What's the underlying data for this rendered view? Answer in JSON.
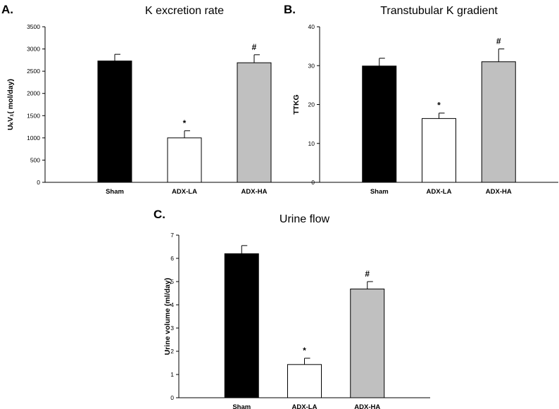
{
  "chart_data": [
    {
      "panel": "A.",
      "type": "bar",
      "title": "K excretion rate",
      "ylabel": "UₖV₁( mol/day)",
      "xlabel": "",
      "categories": [
        "Sham",
        "ADX-LA",
        "ADX-HA"
      ],
      "values": [
        2730,
        1000,
        2690
      ],
      "errors": [
        150,
        160,
        180
      ],
      "significance": [
        "",
        "*",
        "#"
      ],
      "bar_colors": [
        "#000000",
        "#ffffff",
        "#c0c0c0"
      ],
      "ylim": [
        0,
        3500
      ],
      "yticks": [
        "0",
        "500",
        "1000",
        "1500",
        "2000",
        "2500",
        "3000",
        "3500"
      ],
      "grid": false
    },
    {
      "panel": "B.",
      "type": "bar",
      "title": "Transtubular K gradient",
      "ylabel": "TTKG",
      "xlabel": "",
      "categories": [
        "Sham",
        "ADX-LA",
        "ADX-HA"
      ],
      "values": [
        29.9,
        16.4,
        31.0
      ],
      "errors": [
        2.0,
        1.4,
        3.3
      ],
      "significance": [
        "",
        "*",
        "#"
      ],
      "bar_colors": [
        "#000000",
        "#ffffff",
        "#c0c0c0"
      ],
      "ylim": [
        0,
        40
      ],
      "yticks": [
        "0",
        "10",
        "20",
        "30",
        "40"
      ],
      "grid": false
    },
    {
      "panel": "C.",
      "type": "bar",
      "title": "Urine flow",
      "ylabel": "Urine volume (ml/day)",
      "xlabel": "",
      "categories": [
        "Sham",
        "ADX-LA",
        "ADX-HA"
      ],
      "values": [
        6.2,
        1.43,
        4.68
      ],
      "errors": [
        0.35,
        0.27,
        0.32
      ],
      "significance": [
        "",
        "*",
        "#"
      ],
      "bar_colors": [
        "#000000",
        "#ffffff",
        "#c0c0c0"
      ],
      "ylim": [
        0,
        7
      ],
      "yticks": [
        "0",
        "1",
        "2",
        "3",
        "4",
        "5",
        "6",
        "7"
      ],
      "grid": false
    }
  ]
}
